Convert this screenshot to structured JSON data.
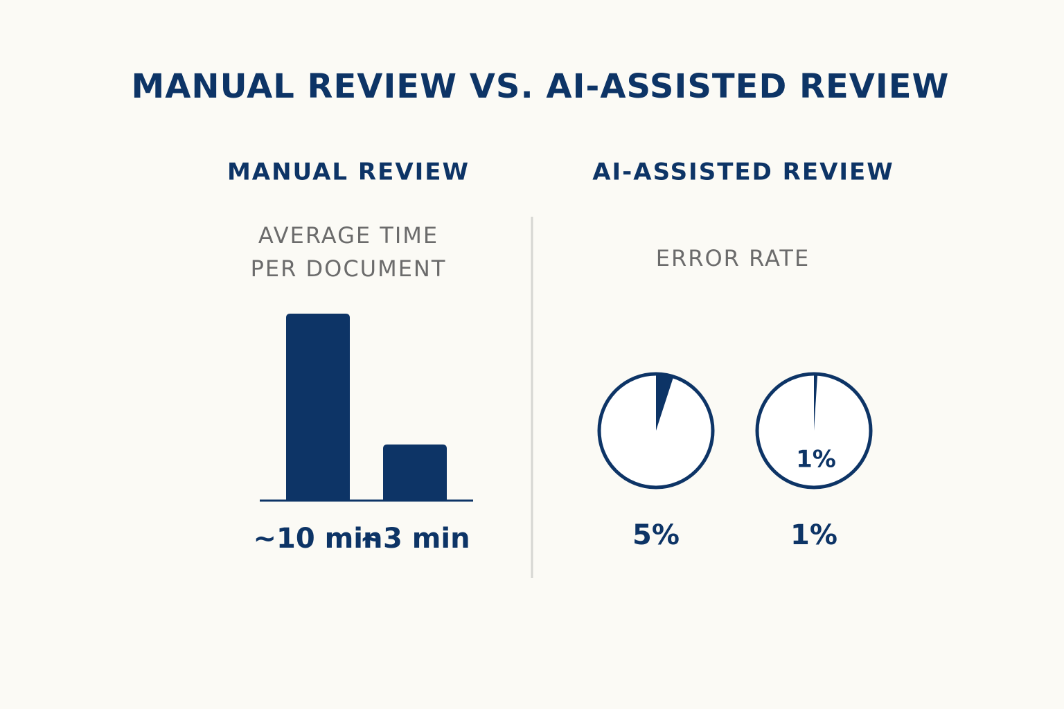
{
  "title": "MANUAL REVIEW VS. AI-ASSISTED REVIEW",
  "chart_data": [
    {
      "type": "bar",
      "title": "MANUAL REVIEW",
      "subtitle": "AVERAGE TIME PER DOCUMENT",
      "values": [
        10,
        3
      ],
      "value_labels": [
        "~10 min",
        "~3 min"
      ],
      "color": "#0d3466"
    },
    {
      "type": "pie",
      "title": "AI-ASSISTED REVIEW",
      "subtitle": "ERROR RATE",
      "values": [
        5,
        1
      ],
      "value_labels": [
        "5%",
        "1%"
      ],
      "color": "#0d3466"
    }
  ]
}
